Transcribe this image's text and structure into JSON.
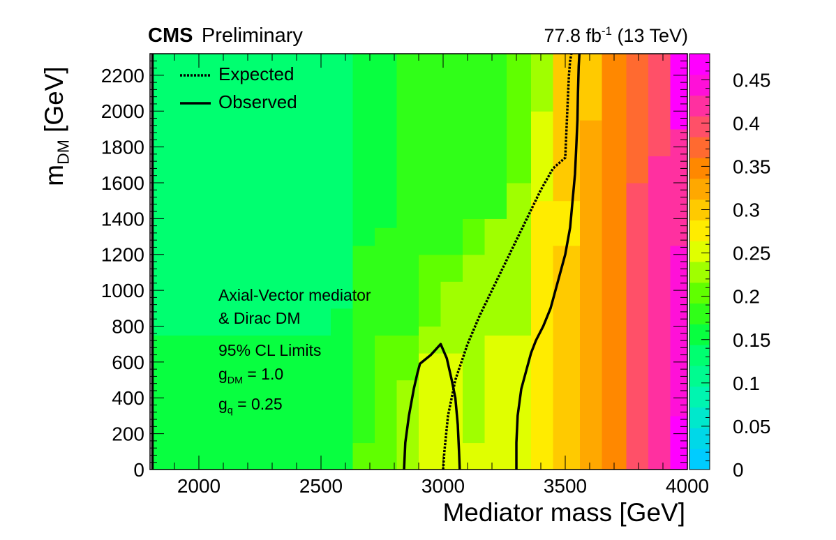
{
  "header": {
    "cms": "CMS",
    "preliminary": "Preliminary",
    "lumi_value": "77.8 fb",
    "lumi_exp": "-1",
    "lumi_energy": "(13 TeV)"
  },
  "legend": {
    "expected": "Expected",
    "observed": "Observed"
  },
  "annotation": {
    "line1": "Axial-Vector mediator",
    "line2": "& Dirac DM",
    "line3": "95% CL Limits",
    "gdm_g": "g",
    "gdm_sub": "DM",
    "gdm_val": " = 1.0",
    "gq_g": "g",
    "gq_sub": "q",
    "gq_val": " = 0.25"
  },
  "axes": {
    "x_title": "Mediator mass [GeV]",
    "y_title_m": "m",
    "y_title_sub": "DM",
    "y_title_unit": " [GeV]"
  },
  "chart_data": {
    "type": "heatmap",
    "x_range": [
      1800,
      4000
    ],
    "y_range": [
      0,
      2320
    ],
    "z_range": [
      0,
      0.48
    ],
    "x_ticks": [
      2000,
      2500,
      3000,
      3500,
      4000
    ],
    "y_ticks": [
      0,
      200,
      400,
      600,
      800,
      1000,
      1200,
      1400,
      1600,
      1800,
      2000,
      2200
    ],
    "z_ticks": [
      0,
      0.05,
      0.1,
      0.15,
      0.2,
      0.25,
      0.3,
      0.35,
      0.4,
      0.45
    ],
    "x_bin_edges": [
      1810,
      1910,
      2090,
      2180,
      2270,
      2360,
      2450,
      2540,
      2630,
      2720,
      2810,
      2900,
      2990,
      3080,
      3170,
      3260,
      3360,
      3450,
      3560,
      3650,
      3750,
      3840,
      3930,
      4000
    ],
    "columns": [
      {
        "segments": [
          [
            0,
            450,
            0.16
          ],
          [
            450,
            750,
            0.15
          ],
          [
            750,
            900,
            0.14
          ],
          [
            900,
            1800,
            0.13
          ],
          [
            1800,
            2320,
            0.13
          ]
        ]
      },
      {
        "segments": [
          [
            0,
            450,
            0.16
          ],
          [
            450,
            750,
            0.15
          ],
          [
            750,
            900,
            0.14
          ],
          [
            900,
            1800,
            0.13
          ],
          [
            1800,
            2320,
            0.13
          ]
        ]
      },
      {
        "segments": [
          [
            0,
            450,
            0.16
          ],
          [
            450,
            750,
            0.15
          ],
          [
            750,
            900,
            0.14
          ],
          [
            900,
            1800,
            0.13
          ],
          [
            1800,
            2320,
            0.13
          ]
        ]
      },
      {
        "segments": [
          [
            0,
            750,
            0.16
          ],
          [
            750,
            900,
            0.14
          ],
          [
            900,
            1800,
            0.13
          ],
          [
            1800,
            2320,
            0.12
          ]
        ]
      },
      {
        "segments": [
          [
            0,
            150,
            0.16
          ],
          [
            150,
            750,
            0.15
          ],
          [
            750,
            900,
            0.14
          ],
          [
            900,
            1800,
            0.12
          ],
          [
            1800,
            2320,
            0.12
          ]
        ]
      },
      {
        "segments": [
          [
            0,
            750,
            0.16
          ],
          [
            750,
            900,
            0.14
          ],
          [
            900,
            1200,
            0.13
          ],
          [
            1200,
            1800,
            0.12
          ],
          [
            1800,
            2320,
            0.12
          ]
        ]
      },
      {
        "segments": [
          [
            0,
            750,
            0.16
          ],
          [
            750,
            900,
            0.14
          ],
          [
            900,
            1150,
            0.13
          ],
          [
            1150,
            1800,
            0.12
          ],
          [
            1800,
            2320,
            0.12
          ]
        ]
      },
      {
        "segments": [
          [
            0,
            750,
            0.16
          ],
          [
            750,
            900,
            0.15
          ],
          [
            900,
            1200,
            0.14
          ],
          [
            1200,
            1800,
            0.13
          ],
          [
            1800,
            2320,
            0.13
          ]
        ]
      },
      {
        "segments": [
          [
            0,
            150,
            0.2
          ],
          [
            150,
            750,
            0.19
          ],
          [
            750,
            1250,
            0.17
          ],
          [
            1250,
            2320,
            0.15
          ]
        ]
      },
      {
        "segments": [
          [
            0,
            750,
            0.21
          ],
          [
            750,
            1350,
            0.18
          ],
          [
            1350,
            2320,
            0.16
          ]
        ]
      },
      {
        "segments": [
          [
            0,
            500,
            0.22
          ],
          [
            500,
            750,
            0.21
          ],
          [
            750,
            1400,
            0.19
          ],
          [
            1400,
            2320,
            0.17
          ]
        ]
      },
      {
        "segments": [
          [
            0,
            650,
            0.24
          ],
          [
            650,
            800,
            0.23
          ],
          [
            800,
            1200,
            0.2
          ],
          [
            1200,
            2320,
            0.18
          ]
        ]
      },
      {
        "segments": [
          [
            0,
            650,
            0.25
          ],
          [
            650,
            1050,
            0.23
          ],
          [
            1050,
            1200,
            0.21
          ],
          [
            1200,
            2320,
            0.19
          ]
        ]
      },
      {
        "segments": [
          [
            0,
            150,
            0.25
          ],
          [
            150,
            1200,
            0.23
          ],
          [
            1200,
            1400,
            0.2
          ],
          [
            1400,
            2320,
            0.18
          ]
        ]
      },
      {
        "segments": [
          [
            0,
            150,
            0.25
          ],
          [
            150,
            750,
            0.24
          ],
          [
            750,
            1400,
            0.22
          ],
          [
            1400,
            2320,
            0.19
          ]
        ]
      },
      {
        "segments": [
          [
            0,
            750,
            0.25
          ],
          [
            750,
            1600,
            0.23
          ],
          [
            1600,
            2320,
            0.2
          ]
        ]
      },
      {
        "segments": [
          [
            0,
            1500,
            0.27
          ],
          [
            1500,
            2000,
            0.24
          ],
          [
            2000,
            2320,
            0.22
          ]
        ]
      },
      {
        "segments": [
          [
            0,
            1250,
            0.29
          ],
          [
            1250,
            1500,
            0.28
          ],
          [
            1500,
            2320,
            0.3
          ]
        ]
      },
      {
        "segments": [
          [
            0,
            1350,
            0.33
          ],
          [
            1350,
            1950,
            0.32
          ],
          [
            1950,
            2320,
            0.31
          ]
        ]
      },
      {
        "segments": [
          [
            0,
            1400,
            0.35
          ],
          [
            1400,
            2320,
            0.34
          ]
        ]
      },
      {
        "segments": [
          [
            0,
            1600,
            0.39
          ],
          [
            1600,
            2320,
            0.37
          ]
        ]
      },
      {
        "segments": [
          [
            0,
            1750,
            0.42
          ],
          [
            1750,
            2320,
            0.4
          ]
        ]
      },
      {
        "segments": [
          [
            0,
            300,
            0.47
          ],
          [
            300,
            1250,
            0.44
          ],
          [
            1250,
            1900,
            0.43
          ],
          [
            1900,
            2320,
            0.46
          ]
        ]
      }
    ],
    "series": [
      {
        "name": "Expected",
        "style": "dotted",
        "x": [
          3000,
          3005,
          3020,
          3050,
          3100,
          3150,
          3200,
          3250,
          3300,
          3350,
          3400,
          3450,
          3500,
          3505,
          3510,
          3515,
          3520,
          3525
        ],
        "y": [
          0,
          100,
          300,
          500,
          700,
          860,
          1000,
          1140,
          1280,
          1420,
          1560,
          1680,
          1740,
          1900,
          2050,
          2200,
          2280,
          2320
        ]
      },
      {
        "name": "Observed",
        "style": "solid",
        "x": [
          1810,
          1810
        ],
        "y": [
          0,
          2320
        ]
      },
      {
        "name": "Observed",
        "style": "solid",
        "x": [
          2840,
          2845,
          2860,
          2880,
          2895,
          2905,
          2950,
          2990,
          3015,
          3035,
          3050,
          3060,
          3065,
          3068
        ],
        "y": [
          0,
          150,
          300,
          450,
          540,
          590,
          640,
          700,
          620,
          500,
          400,
          250,
          100,
          0
        ]
      },
      {
        "name": "Observed",
        "style": "solid",
        "x": [
          3300,
          3300,
          3305,
          3320,
          3340,
          3360,
          3380,
          3410,
          3440,
          3470,
          3500,
          3520,
          3530,
          3540,
          3545,
          3550,
          3552,
          3555,
          3558
        ],
        "y": [
          0,
          150,
          300,
          450,
          550,
          650,
          720,
          800,
          900,
          1050,
          1200,
          1350,
          1500,
          1650,
          1800,
          1950,
          2100,
          2250,
          2320
        ]
      }
    ],
    "palette": [
      "#00ccff",
      "#00d8e8",
      "#00e8cc",
      "#00f5b0",
      "#00fb90",
      "#00ff70",
      "#08ff40",
      "#30ff18",
      "#60ff00",
      "#a0ff00",
      "#e0ff00",
      "#ffec00",
      "#ffca00",
      "#ffa800",
      "#ff8800",
      "#ff6a30",
      "#ff5068",
      "#ff30a0",
      "#ff10d8",
      "#ff00ff"
    ]
  }
}
